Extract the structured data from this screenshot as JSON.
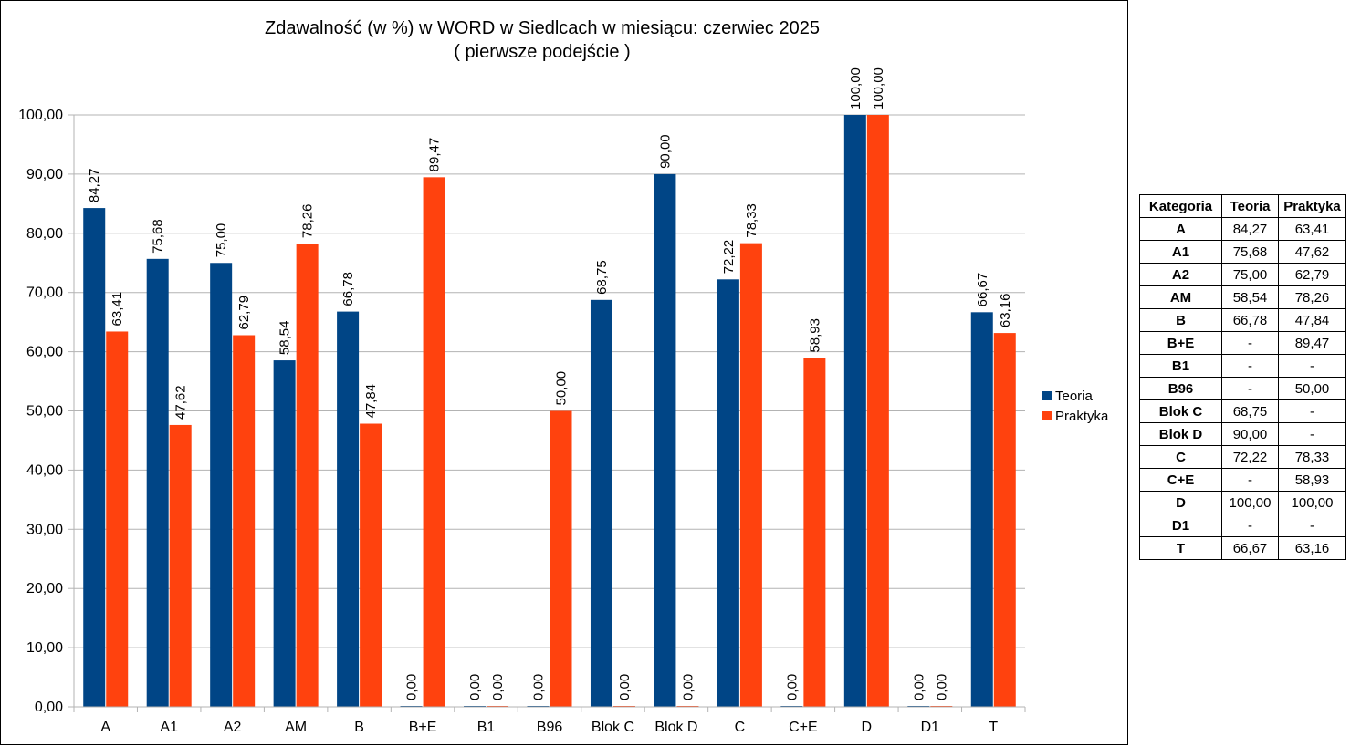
{
  "chart_data": {
    "type": "bar",
    "title": "Zdawalność (w %) w WORD w Siedlcach w miesiącu: czerwiec 2025",
    "subtitle": "( pierwsze podejście )",
    "xlabel": "",
    "ylabel": "",
    "ylim": [
      0,
      100
    ],
    "yticks": [
      "0,00",
      "10,00",
      "20,00",
      "30,00",
      "40,00",
      "50,00",
      "60,00",
      "70,00",
      "80,00",
      "90,00",
      "100,00"
    ],
    "grid": true,
    "legend_position": "right",
    "categories": [
      "A",
      "A1",
      "A2",
      "AM",
      "B",
      "B+E",
      "B1",
      "B96",
      "Blok C",
      "Blok D",
      "C",
      "C+E",
      "D",
      "D1",
      "T"
    ],
    "series": [
      {
        "name": "Teoria",
        "color": "#004586",
        "values": [
          84.27,
          75.68,
          75.0,
          58.54,
          66.78,
          0,
          0,
          0,
          68.75,
          90.0,
          72.22,
          0,
          100.0,
          0,
          66.67
        ],
        "labels": [
          "84,27",
          "75,68",
          "75,00",
          "58,54",
          "66,78",
          "0,00",
          "0,00",
          "0,00",
          "68,75",
          "90,00",
          "72,22",
          "0,00",
          "100,00",
          "0,00",
          "66,67"
        ]
      },
      {
        "name": "Praktyka",
        "color": "#ff420e",
        "values": [
          63.41,
          47.62,
          62.79,
          78.26,
          47.84,
          89.47,
          0,
          50.0,
          0,
          0,
          78.33,
          58.93,
          100.0,
          0,
          63.16
        ],
        "labels": [
          "63,41",
          "47,62",
          "62,79",
          "78,26",
          "47,84",
          "89,47",
          "0,00",
          "50,00",
          "0,00",
          "0,00",
          "78,33",
          "58,93",
          "100,00",
          "0,00",
          "63,16"
        ]
      }
    ]
  },
  "table": {
    "headers": [
      "Kategoria",
      "Teoria",
      "Praktyka"
    ],
    "rows": [
      {
        "cat": "A",
        "teoria": "84,27",
        "praktyka": "63,41"
      },
      {
        "cat": "A1",
        "teoria": "75,68",
        "praktyka": "47,62"
      },
      {
        "cat": "A2",
        "teoria": "75,00",
        "praktyka": "62,79"
      },
      {
        "cat": "AM",
        "teoria": "58,54",
        "praktyka": "78,26"
      },
      {
        "cat": "B",
        "teoria": "66,78",
        "praktyka": "47,84"
      },
      {
        "cat": "B+E",
        "teoria": "-",
        "praktyka": "89,47"
      },
      {
        "cat": "B1",
        "teoria": "-",
        "praktyka": "-"
      },
      {
        "cat": "B96",
        "teoria": "-",
        "praktyka": "50,00"
      },
      {
        "cat": "Blok C",
        "teoria": "68,75",
        "praktyka": "-"
      },
      {
        "cat": "Blok D",
        "teoria": "90,00",
        "praktyka": "-"
      },
      {
        "cat": "C",
        "teoria": "72,22",
        "praktyka": "78,33"
      },
      {
        "cat": "C+E",
        "teoria": "-",
        "praktyka": "58,93"
      },
      {
        "cat": "D",
        "teoria": "100,00",
        "praktyka": "100,00"
      },
      {
        "cat": "D1",
        "teoria": "-",
        "praktyka": "-"
      },
      {
        "cat": "T",
        "teoria": "66,67",
        "praktyka": "63,16"
      }
    ]
  }
}
